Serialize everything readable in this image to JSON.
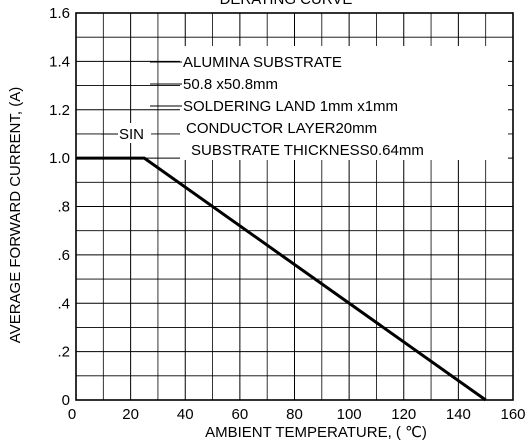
{
  "chart_data": {
    "type": "line",
    "title": "DERATING CURVE",
    "xlabel": "AMBIENT TEMPERATURE, ( ℃)",
    "ylabel": "AVERAGE FORWARD CURRENT, (A)",
    "xlim": [
      0,
      160
    ],
    "ylim": [
      0,
      1.6
    ],
    "grid": true,
    "x_ticks": [
      0,
      20,
      40,
      60,
      80,
      100,
      120,
      140,
      160
    ],
    "x_tick_labels": [
      "0",
      "20",
      "40",
      "60",
      "80",
      "100",
      "120",
      "140",
      "160"
    ],
    "y_ticks": [
      0,
      0.2,
      0.4,
      0.6,
      0.8,
      1.0,
      1.2,
      1.4,
      1.6
    ],
    "y_tick_labels": [
      "0",
      ".2",
      ".4",
      ".6",
      ".8",
      "1.0",
      "1.2",
      "1.4",
      "1.6"
    ],
    "series": [
      {
        "name": "SIN",
        "x": [
          0,
          25,
          150
        ],
        "y": [
          1.0,
          1.0,
          0
        ]
      }
    ],
    "annotations": [
      "ALUMINA SUBSTRATE",
      "50.8 x50.8mm",
      "SOLDERING LAND 1mm x1mm",
      "CONDUCTOR LAYER20mm",
      "SUBSTRATE THICKNESS0.64mm"
    ]
  }
}
